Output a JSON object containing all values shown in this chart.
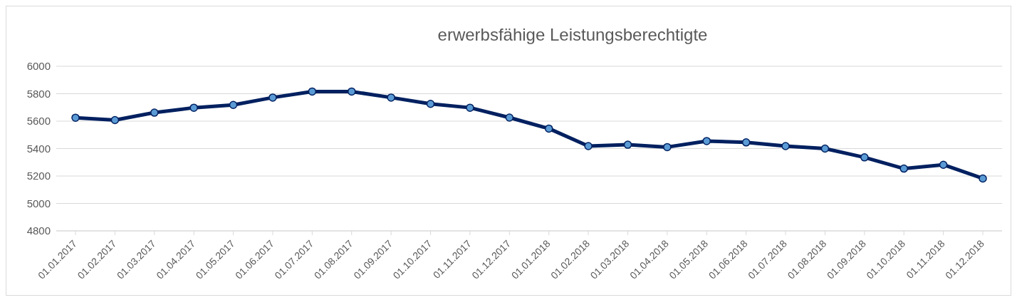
{
  "chart_data": {
    "type": "line",
    "title": "erwerbsfähige Leistungsberechtigte",
    "categories": [
      "01.01.2017",
      "01.02.2017",
      "01.03.2017",
      "01.04.2017",
      "01.05.2017",
      "01.06.2017",
      "01.07.2017",
      "01.08.2017",
      "01.09.2017",
      "01.10.2017",
      "01.11.2017",
      "01.12.2017",
      "01.01.2018",
      "01.02.2018",
      "01.03.2018",
      "01.04.2018",
      "01.05.2018",
      "01.06.2018",
      "01.07.2018",
      "01.08.2018",
      "01.09.2018",
      "01.10.2018",
      "01.11.2018",
      "01.12.2018"
    ],
    "series": [
      {
        "color": "#002060",
        "values": [
          5625,
          5608,
          5662,
          5698,
          5718,
          5772,
          5816,
          5816,
          5772,
          5726,
          5698,
          5626,
          5546,
          5418,
          5428,
          5411,
          5455,
          5445,
          5418,
          5400,
          5336,
          5254,
          5282,
          5182
        ]
      }
    ],
    "ylim": [
      4800,
      6000
    ],
    "yticks": [
      4800,
      5000,
      5200,
      5400,
      5600,
      5800,
      6000
    ],
    "grid": "y",
    "legend": false,
    "marker": "circle",
    "line_style": "solid"
  }
}
